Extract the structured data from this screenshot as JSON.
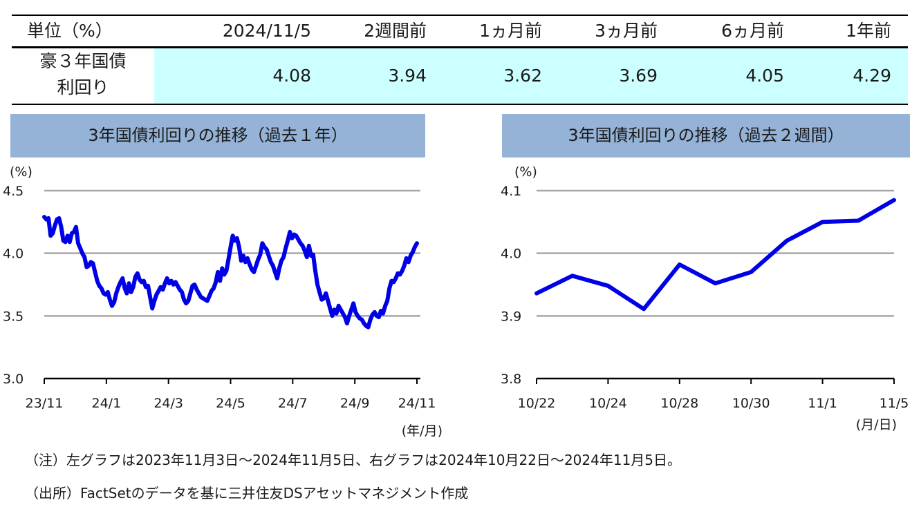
{
  "table": {
    "unit_label": "単位（%）",
    "headers": [
      "2024/11/5",
      "2週間前",
      "1ヵ月前",
      "3ヵ月前",
      "6ヵ月前",
      "1年前"
    ],
    "row_label_line1": "豪３年国債",
    "row_label_line2": "利回り",
    "values": [
      "4.08",
      "3.94",
      "3.62",
      "3.69",
      "4.05",
      "4.29"
    ],
    "colors": {
      "highlight": "#ccffff",
      "rule": "#000000"
    }
  },
  "chart_data": [
    {
      "type": "line",
      "title": "3年国債利回りの推移（過去１年）",
      "ylabel": "(%)",
      "xlabel": "(年/月)",
      "ylim": [
        3.0,
        4.5
      ],
      "yticks": [
        "3.0",
        "3.5",
        "4.0",
        "4.5"
      ],
      "xticks": [
        "23/11",
        "24/1",
        "24/3",
        "24/5",
        "24/7",
        "24/9",
        "24/11"
      ],
      "grid": true,
      "line_color": "#0000e6",
      "title_bg": "#95b3d7",
      "series": [
        {
          "x_start": "2023-11-03",
          "x_end": "2024-11-05",
          "values": [
            4.29,
            4.27,
            4.28,
            4.14,
            4.16,
            4.22,
            4.27,
            4.28,
            4.21,
            4.1,
            4.09,
            4.14,
            4.09,
            4.16,
            4.17,
            4.21,
            4.08,
            4.04,
            4.0,
            3.97,
            3.89,
            3.9,
            3.93,
            3.92,
            3.85,
            3.78,
            3.74,
            3.72,
            3.68,
            3.67,
            3.69,
            3.63,
            3.58,
            3.61,
            3.68,
            3.73,
            3.77,
            3.8,
            3.72,
            3.68,
            3.76,
            3.69,
            3.73,
            3.81,
            3.84,
            3.79,
            3.77,
            3.78,
            3.73,
            3.74,
            3.65,
            3.56,
            3.62,
            3.67,
            3.7,
            3.73,
            3.71,
            3.76,
            3.8,
            3.76,
            3.78,
            3.75,
            3.77,
            3.74,
            3.71,
            3.69,
            3.63,
            3.6,
            3.62,
            3.68,
            3.74,
            3.75,
            3.71,
            3.68,
            3.65,
            3.64,
            3.63,
            3.62,
            3.66,
            3.7,
            3.72,
            3.77,
            3.85,
            3.78,
            3.88,
            3.83,
            3.86,
            3.95,
            4.05,
            4.14,
            4.1,
            4.12,
            4.05,
            3.94,
            3.98,
            3.93,
            3.96,
            3.91,
            3.87,
            3.85,
            3.9,
            3.95,
            3.99,
            4.08,
            4.05,
            4.03,
            3.98,
            3.93,
            3.9,
            3.85,
            3.8,
            3.88,
            3.94,
            3.97,
            4.04,
            4.1,
            4.17,
            4.12,
            4.15,
            4.14,
            4.11,
            4.08,
            4.06,
            4.02,
            3.97,
            4.06,
            3.98,
            3.99,
            3.86,
            3.75,
            3.69,
            3.63,
            3.64,
            3.68,
            3.62,
            3.56,
            3.5,
            3.55,
            3.52,
            3.58,
            3.55,
            3.52,
            3.49,
            3.44,
            3.5,
            3.55,
            3.6,
            3.53,
            3.5,
            3.48,
            3.47,
            3.44,
            3.42,
            3.41,
            3.47,
            3.51,
            3.53,
            3.5,
            3.49,
            3.54,
            3.52,
            3.58,
            3.62,
            3.72,
            3.78,
            3.77,
            3.8,
            3.84,
            3.83,
            3.86,
            3.9,
            3.96,
            3.93,
            3.98,
            4.01,
            4.05,
            4.08
          ]
        }
      ]
    },
    {
      "type": "line",
      "title": "3年国債利回りの推移（過去２週間）",
      "ylabel": "(%)",
      "xlabel": "(月/日)",
      "ylim": [
        3.8,
        4.1
      ],
      "yticks": [
        "3.8",
        "3.9",
        "4.0",
        "4.1"
      ],
      "categories": [
        "10/22",
        "10/23",
        "10/24",
        "10/25",
        "10/28",
        "10/29",
        "10/30",
        "10/31",
        "11/1",
        "11/4",
        "11/5"
      ],
      "xtick_labels": [
        "10/22",
        "10/24",
        "10/28",
        "10/30",
        "11/1",
        "11/5"
      ],
      "grid": true,
      "line_color": "#0000e6",
      "title_bg": "#95b3d7",
      "series": [
        {
          "values": [
            3.936,
            3.964,
            3.948,
            3.911,
            3.982,
            3.952,
            3.97,
            4.02,
            4.05,
            4.052,
            4.085
          ]
        }
      ]
    }
  ],
  "notes": {
    "note1": "（注）左グラフは2023年11月3日～2024年11月5日、右グラフは2024年10月22日～2024年11月5日。",
    "note2": "（出所）FactSetのデータを基に三井住友DSアセットマネジメント作成"
  }
}
